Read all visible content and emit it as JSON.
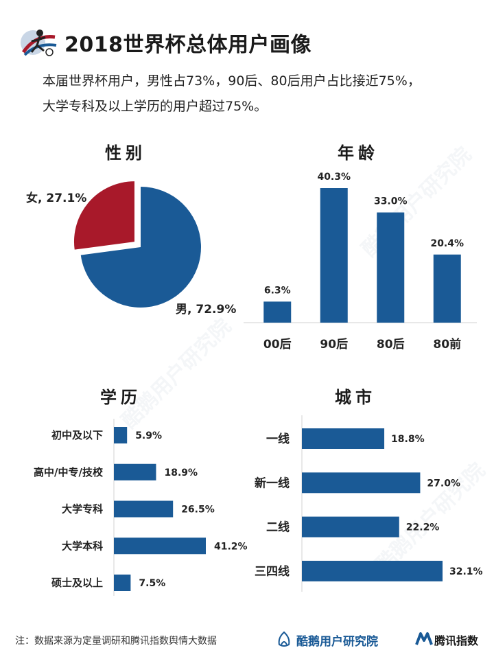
{
  "header": {
    "title": "2018世界杯总体用户画像",
    "subtitle_line1": "本届世界杯用户，男性占73%，90后、80后用户占比接近75%，",
    "subtitle_line2": "大学专科及以上学历的用户超过75%。"
  },
  "sections": {
    "gender": "性别",
    "age": "年龄",
    "education": "学历",
    "city": "城市"
  },
  "colors": {
    "blue": "#1a5a96",
    "red": "#a8192a",
    "axis": "#d0d0d0"
  },
  "chart_data": [
    {
      "type": "pie",
      "categories": [
        "女",
        "男"
      ],
      "values": [
        27.1,
        72.9
      ],
      "data_labels": [
        "女, 27.1%",
        "男, 72.9%"
      ],
      "colors": [
        "#a8192a",
        "#1a5a96"
      ],
      "exploded": "女"
    },
    {
      "type": "bar",
      "orientation": "vertical",
      "categories": [
        "00后",
        "90后",
        "80后",
        "80前"
      ],
      "values": [
        6.3,
        40.3,
        33.0,
        20.4
      ],
      "data_labels": [
        "6.3%",
        "40.3%",
        "33.0%",
        "20.4%"
      ]
    },
    {
      "type": "bar",
      "orientation": "horizontal",
      "categories": [
        "初中及以下",
        "高中/中专/技校",
        "大学专科",
        "大学本科",
        "硕士及以上"
      ],
      "values": [
        5.9,
        18.9,
        26.5,
        41.2,
        7.5
      ],
      "data_labels": [
        "5.9%",
        "18.9%",
        "26.5%",
        "41.2%",
        "7.5%"
      ]
    },
    {
      "type": "bar",
      "orientation": "horizontal",
      "categories": [
        "一线",
        "新一线",
        "二线",
        "三四线"
      ],
      "values": [
        18.8,
        27.0,
        22.2,
        32.1
      ],
      "data_labels": [
        "18.8%",
        "27.0%",
        "22.2%",
        "32.1%"
      ]
    }
  ],
  "footer": {
    "note": "注：数据来源为定量调研和腾讯指数舆情大数据",
    "brand_kuer": "酷鹅用户研究院",
    "brand_tencent": "腾讯指数",
    "logo_icon": "football-player-icon",
    "kuer_icon": "penguin-logo-icon",
    "tencent_icon": "tencent-index-logo-icon"
  }
}
